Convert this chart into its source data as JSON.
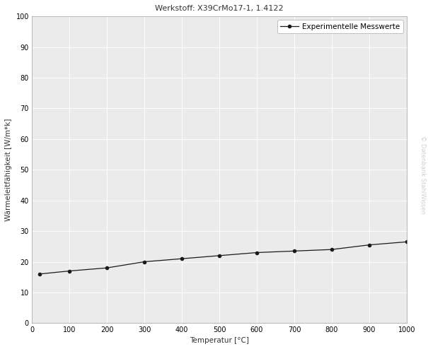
{
  "title": "Werkstoff: X39CrMo17-1, 1.4122",
  "xlabel": "Temperatur [°C]",
  "ylabel": "Wärmeleitfähigkeit [W/m*k]",
  "legend_label": "Experimentelle Messwerte",
  "watermark": "© Datenbank StahlWissen",
  "x_data": [
    20,
    100,
    200,
    300,
    400,
    500,
    600,
    700,
    800,
    900,
    1000
  ],
  "y_data": [
    16.0,
    17.0,
    18.0,
    20.0,
    21.0,
    22.0,
    23.0,
    23.5,
    24.0,
    25.5,
    26.5
  ],
  "xlim": [
    0,
    1000
  ],
  "ylim": [
    0,
    100
  ],
  "xticks": [
    0,
    100,
    200,
    300,
    400,
    500,
    600,
    700,
    800,
    900,
    1000
  ],
  "yticks": [
    0,
    10,
    20,
    30,
    40,
    50,
    60,
    70,
    80,
    90,
    100
  ],
  "line_color": "#1a1a1a",
  "marker": "o",
  "marker_size": 3,
  "figure_bg_color": "#ffffff",
  "plot_bg_color": "#ebebeb",
  "grid_color": "#ffffff",
  "grid_linewidth": 0.7,
  "title_fontsize": 8,
  "label_fontsize": 7.5,
  "tick_fontsize": 7,
  "legend_fontsize": 7.5,
  "watermark_color": "#d0d0d0",
  "watermark_fontsize": 6,
  "spine_color": "#999999",
  "spine_linewidth": 0.5
}
